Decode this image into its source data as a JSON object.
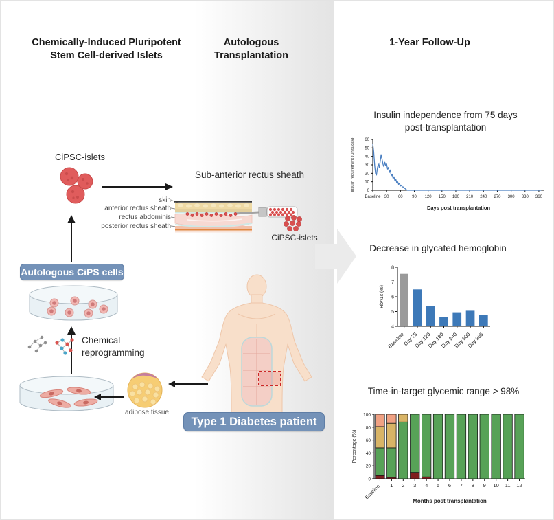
{
  "headers": {
    "left": "Chemically-Induced Pluripotent\nStem Cell-derived Islets",
    "middle": "Autologous\nTransplantation",
    "right": "1-Year Follow-Up"
  },
  "left_panel": {
    "cipsc_islets_label": "CiPSC-islets",
    "autologous_badge": "Autologous CiPS cells",
    "chemical_reprogramming_label": "Chemical\nreprogramming",
    "adipose_label": "adipose tissue"
  },
  "middle_panel": {
    "site_title": "Sub-anterior rectus sheath",
    "layer_labels": [
      "skin",
      "anterior rectus sheath",
      "rectus abdominis",
      "posterior rectus sheath"
    ],
    "islets_label": "CiPSC-islets",
    "patient_badge": "Type 1 Diabetes patient"
  },
  "colors": {
    "badge_blue": "#7492b8",
    "line_blue": "#4a7fc1",
    "bar_blue": "#3d79b8",
    "baseline_gray": "#9a9a9a",
    "islet_red": "#d94f4f",
    "range_green": "#57a257",
    "above_tan": "#d8b466",
    "high_salmon": "#f0a183",
    "low_darkred": "#7f1f1f"
  },
  "chart_data": [
    {
      "type": "line",
      "title": "Insulin independence from 75 days\npost-transplantation",
      "xlabel": "Days post transplantation",
      "ylabel": "Insulin requirement (Units/day)",
      "xlim": [
        0,
        372
      ],
      "ylim": [
        0,
        60
      ],
      "yticks": [
        0,
        10,
        20,
        30,
        40,
        50,
        60
      ],
      "xticks": [
        {
          "x": 0,
          "label": "Baseline"
        },
        {
          "x": 30,
          "label": "30"
        },
        {
          "x": 60,
          "label": "60"
        },
        {
          "x": 90,
          "label": "90"
        },
        {
          "x": 120,
          "label": "120"
        },
        {
          "x": 150,
          "label": "150"
        },
        {
          "x": 180,
          "label": "180"
        },
        {
          "x": 210,
          "label": "210"
        },
        {
          "x": 240,
          "label": "240"
        },
        {
          "x": 270,
          "label": "270"
        },
        {
          "x": 300,
          "label": "300"
        },
        {
          "x": 330,
          "label": "330"
        },
        {
          "x": 360,
          "label": "360"
        }
      ],
      "color": "#4a7fc1",
      "x": [
        0,
        2,
        4,
        6,
        8,
        10,
        12,
        14,
        16,
        18,
        20,
        22,
        24,
        26,
        28,
        30,
        32,
        34,
        36,
        38,
        40,
        42,
        44,
        46,
        48,
        50,
        52,
        54,
        56,
        58,
        60,
        62,
        64,
        66,
        68,
        70,
        72,
        75,
        90,
        120,
        150,
        180,
        210,
        240,
        270,
        300,
        330,
        365
      ],
      "y": [
        55,
        46,
        30,
        20,
        18,
        26,
        31,
        27,
        34,
        42,
        37,
        31,
        28,
        33,
        29,
        31,
        25,
        27,
        21,
        24,
        17,
        19,
        14,
        16,
        11,
        13,
        9,
        10,
        7,
        8,
        5,
        6,
        4,
        4,
        3,
        2,
        1,
        0,
        0,
        0,
        0,
        0,
        0,
        0,
        0,
        0,
        0,
        0
      ]
    },
    {
      "type": "bar",
      "title": "Decrease in glycated hemoglobin",
      "ylabel": "HbA1c (%)",
      "ylim": [
        4,
        8
      ],
      "yticks": [
        4,
        5,
        6,
        7,
        8
      ],
      "categories": [
        "Baseline",
        "Day 75",
        "Day 120",
        "Day 180",
        "Day 240",
        "Day 300",
        "Day 365"
      ],
      "values": [
        7.55,
        6.5,
        5.35,
        4.65,
        4.95,
        5.05,
        4.75
      ],
      "colors": [
        "#9a9a9a",
        "#3d79b8",
        "#3d79b8",
        "#3d79b8",
        "#3d79b8",
        "#3d79b8",
        "#3d79b8"
      ]
    },
    {
      "type": "stacked_bar",
      "title": "Time-in-target glycemic range > 98%",
      "xlabel": "Months post transplantation",
      "ylabel": "Percentage (%)",
      "ylim": [
        0,
        100
      ],
      "yticks": [
        0,
        20,
        40,
        60,
        80,
        100
      ],
      "categories": [
        "Baseline",
        "1",
        "2",
        "3",
        "4",
        "5",
        "6",
        "7",
        "8",
        "9",
        "10",
        "11",
        "12"
      ],
      "series": [
        {
          "name": "below_range_darkred",
          "color": "#7f1f1f",
          "values": [
            5,
            2,
            0,
            10,
            3,
            0,
            0,
            0,
            0,
            0,
            0,
            0,
            0
          ]
        },
        {
          "name": "in_range_green",
          "color": "#57a257",
          "values": [
            43,
            46,
            88,
            90,
            97,
            100,
            100,
            100,
            100,
            100,
            100,
            100,
            100
          ]
        },
        {
          "name": "above_range_tan",
          "color": "#d8b466",
          "values": [
            33,
            38,
            12,
            0,
            0,
            0,
            0,
            0,
            0,
            0,
            0,
            0,
            0
          ]
        },
        {
          "name": "high_salmon",
          "color": "#f0a183",
          "values": [
            19,
            14,
            0,
            0,
            0,
            0,
            0,
            0,
            0,
            0,
            0,
            0,
            0
          ]
        }
      ]
    }
  ]
}
